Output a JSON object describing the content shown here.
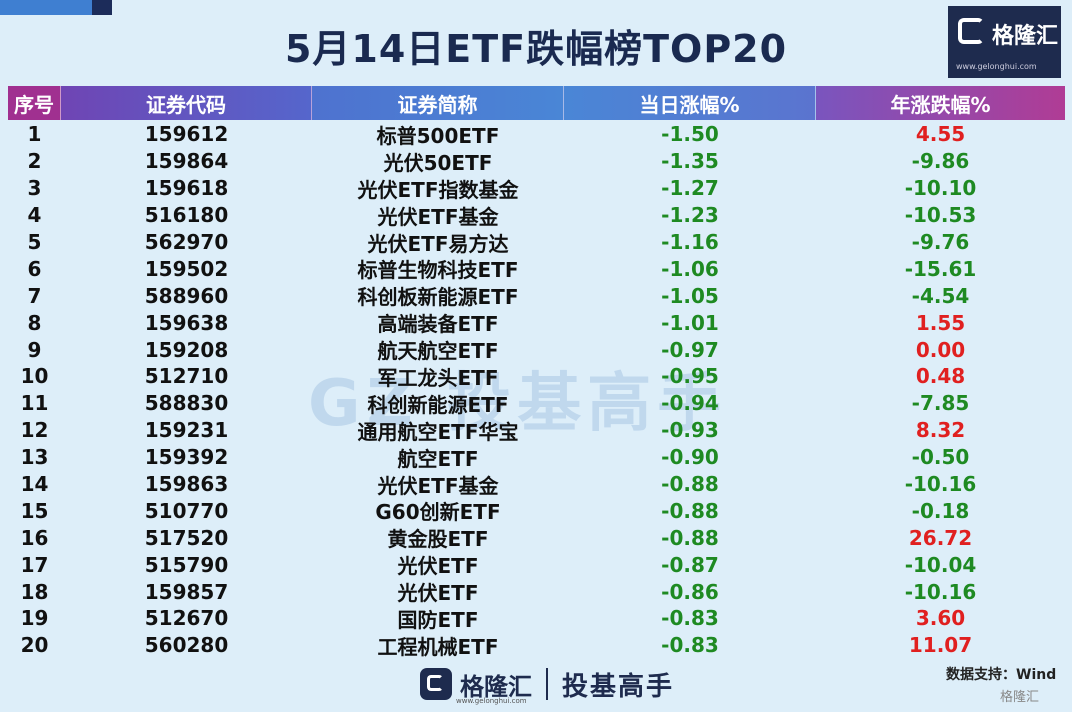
{
  "title": "5月14日ETF跌幅榜TOP20",
  "logo": {
    "name": "格隆汇",
    "url": "www.gelonghui.com"
  },
  "table": {
    "headers": [
      "序号",
      "证券代码",
      "证券简称",
      "当日涨幅%",
      "年涨跌幅%"
    ],
    "rows": [
      [
        "1",
        "159612",
        "标普500ETF",
        "-1.50",
        "4.55"
      ],
      [
        "2",
        "159864",
        "光伏50ETF",
        "-1.35",
        "-9.86"
      ],
      [
        "3",
        "159618",
        "光伏ETF指数基金",
        "-1.27",
        "-10.10"
      ],
      [
        "4",
        "516180",
        "光伏ETF基金",
        "-1.23",
        "-10.53"
      ],
      [
        "5",
        "562970",
        "光伏ETF易方达",
        "-1.16",
        "-9.76"
      ],
      [
        "6",
        "159502",
        "标普生物科技ETF",
        "-1.06",
        "-15.61"
      ],
      [
        "7",
        "588960",
        "科创板新能源ETF",
        "-1.05",
        "-4.54"
      ],
      [
        "8",
        "159638",
        "高端装备ETF",
        "-1.01",
        "1.55"
      ],
      [
        "9",
        "159208",
        "航天航空ETF",
        "-0.97",
        "0.00"
      ],
      [
        "10",
        "512710",
        "军工龙头ETF",
        "-0.95",
        "0.48"
      ],
      [
        "11",
        "588830",
        "科创新能源ETF",
        "-0.94",
        "-7.85"
      ],
      [
        "12",
        "159231",
        "通用航空ETF华宝",
        "-0.93",
        "8.32"
      ],
      [
        "13",
        "159392",
        "航空ETF",
        "-0.90",
        "-0.50"
      ],
      [
        "14",
        "159863",
        "光伏ETF基金",
        "-0.88",
        "-10.16"
      ],
      [
        "15",
        "510770",
        "G60创新ETF",
        "-0.88",
        "-0.18"
      ],
      [
        "16",
        "517520",
        "黄金股ETF",
        "-0.88",
        "26.72"
      ],
      [
        "17",
        "515790",
        "光伏ETF",
        "-0.87",
        "-10.04"
      ],
      [
        "18",
        "159857",
        "光伏ETF",
        "-0.86",
        "-10.16"
      ],
      [
        "19",
        "512670",
        "国防ETF",
        "-0.83",
        "3.60"
      ],
      [
        "20",
        "560280",
        "工程机械ETF",
        "-0.83",
        "11.07"
      ]
    ]
  },
  "colors": {
    "positive": "#e02020",
    "negative": "#1e8a22",
    "neutral": "#e02020"
  },
  "watermark": "GZ 投基高手",
  "footer": {
    "logo_name": "格隆汇",
    "logo_url": "www.gelonghui.com",
    "slogan": "投基高手",
    "source": "数据支持：Wind",
    "corner_mark": "格隆汇"
  }
}
